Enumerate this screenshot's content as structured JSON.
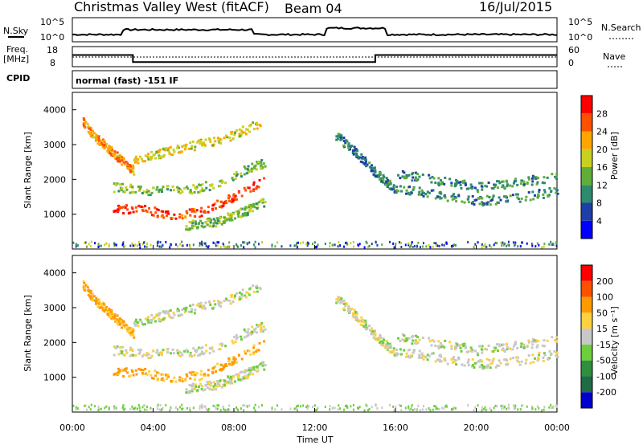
{
  "header": {
    "title": "Christmas Valley West (fitACF)",
    "beam": "Beam 04",
    "date": "16/Jul/2015"
  },
  "noise_panel": {
    "left_label": "N.Sky",
    "right_label": "N.Search",
    "left_ticks": [
      "10^5",
      "10^0"
    ],
    "right_ticks": [
      "10^5",
      "10^0"
    ]
  },
  "freq_panel": {
    "left_label_1": "Freq.",
    "left_label_2": "[MHz]",
    "right_label": "Nave",
    "left_ticks": [
      "18",
      "8"
    ],
    "right_ticks": [
      "60",
      "0"
    ]
  },
  "cpid_panel": {
    "label": "CPID",
    "text": "normal (fast) -151 IF"
  },
  "power_panel": {
    "ylabel": "Slant Range [km]",
    "y_ticks": [
      "4000",
      "3000",
      "2000",
      "1000"
    ],
    "colorbar_label": "Power [dB]",
    "colorbar_ticks": [
      "28",
      "24",
      "20",
      "16",
      "12",
      "8",
      "4"
    ],
    "colors": [
      "#0000ff",
      "#1e3fa8",
      "#2e8a6e",
      "#5fae3a",
      "#c8d020",
      "#ffa500",
      "#ff5000",
      "#ff0000"
    ]
  },
  "velocity_panel": {
    "ylabel": "Slant Range [km]",
    "y_ticks": [
      "4000",
      "3000",
      "2000",
      "1000"
    ],
    "colorbar_label": "Velocity [m s⁻¹]",
    "colorbar_ticks": [
      "200",
      "100",
      "50",
      "15",
      "-15",
      "-50",
      "-100",
      "-200"
    ],
    "colors": [
      "#0000cc",
      "#1f6b46",
      "#2f8f3f",
      "#6ccf3c",
      "#c8c8c8",
      "#ffd040",
      "#ff9a00",
      "#ff5000",
      "#ff0000"
    ]
  },
  "xaxis": {
    "label": "Time UT",
    "ticks": [
      "00:00",
      "04:00",
      "08:00",
      "12:00",
      "16:00",
      "20:00",
      "00:00"
    ]
  },
  "chart_data": {
    "type": "heatmap",
    "x_unit": "hours UT",
    "xlim": [
      0,
      24
    ],
    "y_unit": "km",
    "ylim": [
      0,
      4500
    ],
    "power_scale": [
      0,
      30
    ],
    "velocity_scale": [
      -250,
      250
    ],
    "freq_step": {
      "x": [
        0,
        3,
        3,
        15,
        15,
        24
      ],
      "y": [
        13.8,
        13.8,
        10.3,
        10.3,
        13.8,
        13.8
      ]
    },
    "power_regions": [
      {
        "name": "range arc 1",
        "x": [
          0.5,
          1.0,
          1.8,
          2.5,
          3.0
        ],
        "y": [
          3700,
          3300,
          2900,
          2500,
          2300
        ],
        "level": 22
      },
      {
        "name": "range arc 2",
        "x": [
          3.0,
          4.5,
          6.0,
          7.5,
          8.5,
          9.5
        ],
        "y": [
          2600,
          2800,
          3000,
          3200,
          3450,
          3700
        ],
        "level": 18
      },
      {
        "name": "main band",
        "x": [
          2.0,
          3.5,
          5.0,
          6.5,
          7.5,
          8.5,
          9.5
        ],
        "y": [
          1200,
          1150,
          1000,
          1100,
          1400,
          1700,
          2000
        ],
        "level": 26
      },
      {
        "name": "upper band",
        "x": [
          2.0,
          4.0,
          6.0,
          7.5,
          8.5,
          9.5
        ],
        "y": [
          1800,
          1700,
          1750,
          1950,
          2300,
          2500
        ],
        "level": 14
      },
      {
        "name": "lower band",
        "x": [
          5.5,
          7.0,
          8.5,
          9.5
        ],
        "y": [
          700,
          800,
          1100,
          1400
        ],
        "level": 14
      },
      {
        "name": "night arc",
        "x": [
          13.0,
          14.0,
          15.0,
          16.0
        ],
        "y": [
          3300,
          2800,
          2200,
          1700
        ],
        "level": 8
      },
      {
        "name": "dawn band",
        "x": [
          16.0,
          18.0,
          20.0,
          22.0,
          24.0
        ],
        "y": [
          1800,
          1600,
          1400,
          1500,
          1700
        ],
        "level": 10
      },
      {
        "name": "dawn band 2",
        "x": [
          16.0,
          18.0,
          20.0,
          22.0,
          24.0
        ],
        "y": [
          2200,
          2000,
          1800,
          1950,
          2100
        ],
        "level": 10
      }
    ]
  }
}
